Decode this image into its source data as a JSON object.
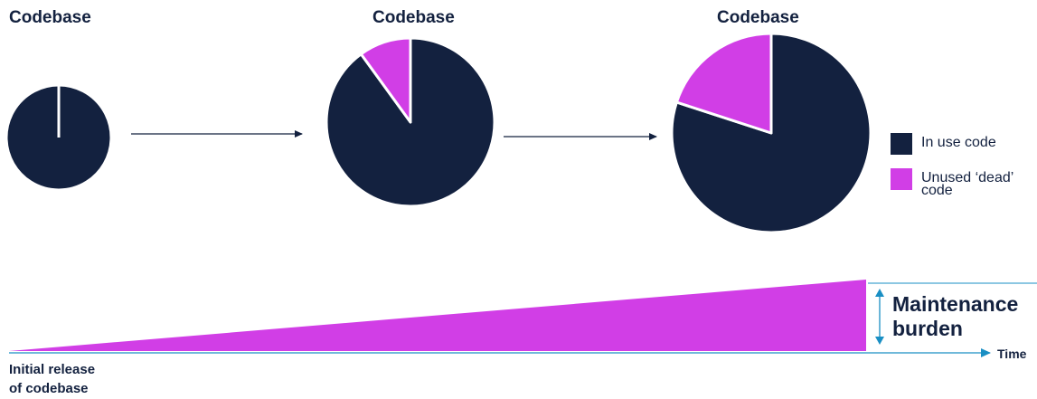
{
  "colors": {
    "in_use": "#13213f",
    "dead": "#d13ee6",
    "axis": "#1a8fc4",
    "text": "#13213f"
  },
  "pies": [
    {
      "title": "Codebase",
      "slices": [
        {
          "legend_key": "in_use",
          "fraction": 1.0
        },
        {
          "legend_key": "dead",
          "fraction": 0.0
        }
      ]
    },
    {
      "title": "Codebase",
      "slices": [
        {
          "legend_key": "in_use",
          "fraction": 0.9
        },
        {
          "legend_key": "dead",
          "fraction": 0.1
        }
      ]
    },
    {
      "title": "Codebase",
      "slices": [
        {
          "legend_key": "in_use",
          "fraction": 0.8
        },
        {
          "legend_key": "dead",
          "fraction": 0.2
        }
      ]
    }
  ],
  "legend": {
    "in_use": "In use code",
    "dead_line1": "Unused ‘dead’",
    "dead_line2": "code"
  },
  "burden": {
    "line1": "Maintenance",
    "line2": "burden"
  },
  "axis": {
    "time_label": "Time",
    "start_line1": "Initial release",
    "start_line2": "of codebase"
  }
}
